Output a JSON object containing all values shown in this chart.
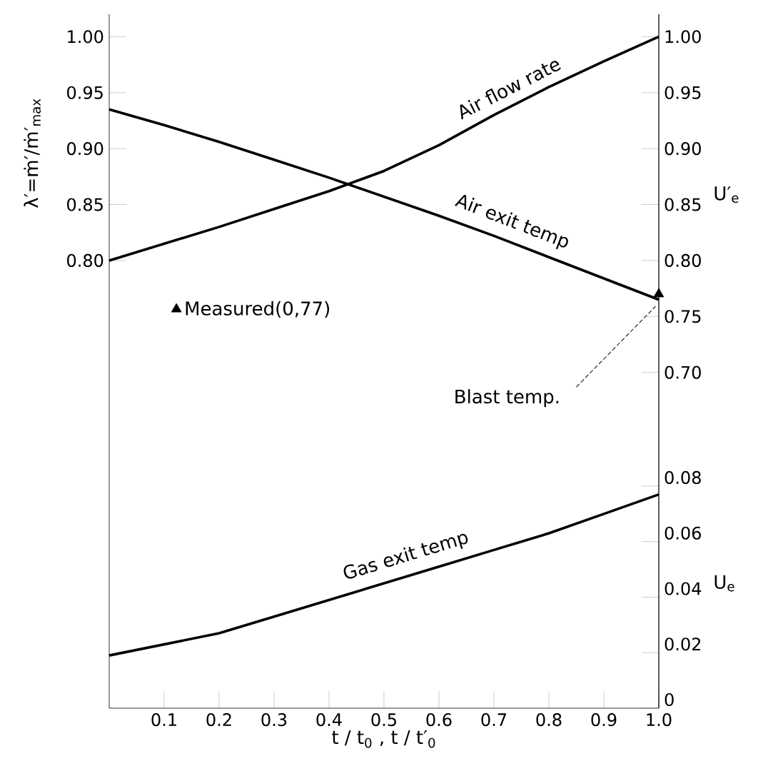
{
  "chart_data": {
    "type": "line",
    "xlabel": "t / t$_{0}$ ,   t / t′$_{0}$",
    "ylabel": "λ′=ṁ′/ṁ′$_{max}$",
    "y2label": "U′$_{e}$",
    "y3label": "U$_{e}$",
    "xlim": [
      0,
      1.0
    ],
    "xticks": [
      {
        "value": 0.1,
        "label": "0.1"
      },
      {
        "value": 0.2,
        "label": "0.2"
      },
      {
        "value": 0.3,
        "label": "0.3"
      },
      {
        "value": 0.4,
        "label": "0.4"
      },
      {
        "value": 0.5,
        "label": "0.5"
      },
      {
        "value": 0.6,
        "label": "0.6"
      },
      {
        "value": 0.7,
        "label": "0.7"
      },
      {
        "value": 0.8,
        "label": "0.8"
      },
      {
        "value": 0.9,
        "label": "0.9"
      },
      {
        "value": 1.0,
        "label": "1.0"
      }
    ],
    "ylim": [
      0.4,
      1.02
    ],
    "yticks": [
      {
        "value": 0.8,
        "label": "0.80"
      },
      {
        "value": 0.85,
        "label": "0.85"
      },
      {
        "value": 0.9,
        "label": "0.90"
      },
      {
        "value": 0.95,
        "label": "0.95"
      },
      {
        "value": 1.0,
        "label": "1.00"
      }
    ],
    "y2lim": [
      0.4,
      1.02
    ],
    "y2ticks": [
      {
        "value": 0.7,
        "label": "0.70"
      },
      {
        "value": 0.75,
        "label": "0.75"
      },
      {
        "value": 0.8,
        "label": "0.80"
      },
      {
        "value": 0.85,
        "label": "0.85"
      },
      {
        "value": 0.9,
        "label": "0.90"
      },
      {
        "value": 0.95,
        "label": "0.95"
      },
      {
        "value": 1.0,
        "label": "1.00"
      }
    ],
    "y3lim": [
      0,
      0.25
    ],
    "y3ticks": [
      0,
      {
        "value": 0.02,
        "label": "0.02"
      },
      {
        "value": 0.04,
        "label": "0.04"
      },
      {
        "value": 0.06,
        "label": "0.06"
      },
      {
        "value": 0.08,
        "label": "0.08"
      }
    ],
    "legend": "left",
    "series": [
      {
        "name": "Air flow rate",
        "color": "#000000",
        "line_style": "solid",
        "x": [
          0,
          0.1,
          0.2,
          0.3,
          0.4,
          0.5,
          0.6,
          0.7,
          0.8,
          0.9,
          1.0
        ],
        "values": [
          0.8,
          0.815,
          0.83,
          0.846,
          0.862,
          0.88,
          0.903,
          0.93,
          0.955,
          0.978,
          1.0
        ]
      },
      {
        "name": "Air exit temp",
        "axis": "y2",
        "color": "#000000",
        "line_style": "solid",
        "x": [
          0,
          0.1,
          0.2,
          0.3,
          0.4,
          0.5,
          0.6,
          0.7,
          0.8,
          0.9,
          1.0
        ],
        "values": [
          0.935,
          0.921,
          0.906,
          0.89,
          0.874,
          0.857,
          0.84,
          0.822,
          0.803,
          0.784,
          0.765
        ]
      },
      {
        "name": "Gas exit temp",
        "axis": "y3",
        "color": "#000000",
        "line_style": "solid",
        "x": [
          0,
          0.1,
          0.2,
          0.3,
          0.4,
          0.5,
          0.6,
          0.7,
          0.8,
          0.9,
          1.0
        ],
        "values": [
          0.019,
          0.023,
          0.027,
          0.033,
          0.039,
          0.045,
          0.051,
          0.057,
          0.063,
          0.07,
          0.077
        ]
      },
      {
        "name": "Measured(0,77)",
        "type": "scatter",
        "axis": "y2",
        "marker": "triangle",
        "color": "#000000",
        "x": [
          1.0
        ],
        "values": [
          0.77
        ]
      }
    ],
    "annotations": [
      {
        "text": "Blast temp.",
        "x": 1.0,
        "y": 0.765
      }
    ]
  }
}
